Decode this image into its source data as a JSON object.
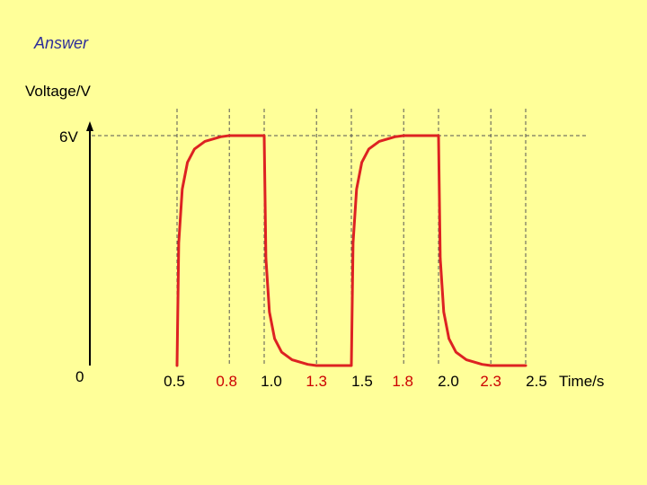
{
  "slide": {
    "heading": "Answer",
    "heading_color": "#2E2E9A"
  },
  "chart_data": {
    "type": "line",
    "ylabel": "Voltage/V",
    "xlabel": "Time/s",
    "y_tick_top": "6V",
    "y_tick_bottom": "0",
    "ylim": [
      0,
      6
    ],
    "xlim": [
      0,
      2.6
    ],
    "x_ticks": [
      {
        "value": 0.5,
        "label": "0.5",
        "color": "#000000"
      },
      {
        "value": 0.8,
        "label": "0.8",
        "color": "#CC0000"
      },
      {
        "value": 1.0,
        "label": "1.0",
        "color": "#000000"
      },
      {
        "value": 1.3,
        "label": "1.3",
        "color": "#CC0000"
      },
      {
        "value": 1.5,
        "label": "1.5",
        "color": "#000000"
      },
      {
        "value": 1.8,
        "label": "1.8",
        "color": "#CC0000"
      },
      {
        "value": 2.0,
        "label": "2.0",
        "color": "#000000"
      },
      {
        "value": 2.3,
        "label": "2.3",
        "color": "#CC0000"
      },
      {
        "value": 2.5,
        "label": "2.5",
        "color": "#000000"
      }
    ],
    "series": [
      {
        "color": "#DD2222",
        "points": [
          [
            0.5,
            0.0
          ],
          [
            0.51,
            3.2
          ],
          [
            0.53,
            4.6
          ],
          [
            0.56,
            5.3
          ],
          [
            0.6,
            5.65
          ],
          [
            0.66,
            5.85
          ],
          [
            0.75,
            5.97
          ],
          [
            0.8,
            6.0
          ],
          [
            1.0,
            6.0
          ],
          [
            1.01,
            2.8
          ],
          [
            1.03,
            1.4
          ],
          [
            1.06,
            0.7
          ],
          [
            1.1,
            0.35
          ],
          [
            1.16,
            0.15
          ],
          [
            1.25,
            0.03
          ],
          [
            1.3,
            0.0
          ],
          [
            1.5,
            0.0
          ],
          [
            1.51,
            3.2
          ],
          [
            1.53,
            4.6
          ],
          [
            1.56,
            5.3
          ],
          [
            1.6,
            5.65
          ],
          [
            1.66,
            5.85
          ],
          [
            1.75,
            5.97
          ],
          [
            1.8,
            6.0
          ],
          [
            2.0,
            6.0
          ],
          [
            2.01,
            2.8
          ],
          [
            2.03,
            1.4
          ],
          [
            2.06,
            0.7
          ],
          [
            2.1,
            0.35
          ],
          [
            2.16,
            0.15
          ],
          [
            2.25,
            0.03
          ],
          [
            2.3,
            0.0
          ],
          [
            2.5,
            0.0
          ]
        ]
      }
    ]
  }
}
